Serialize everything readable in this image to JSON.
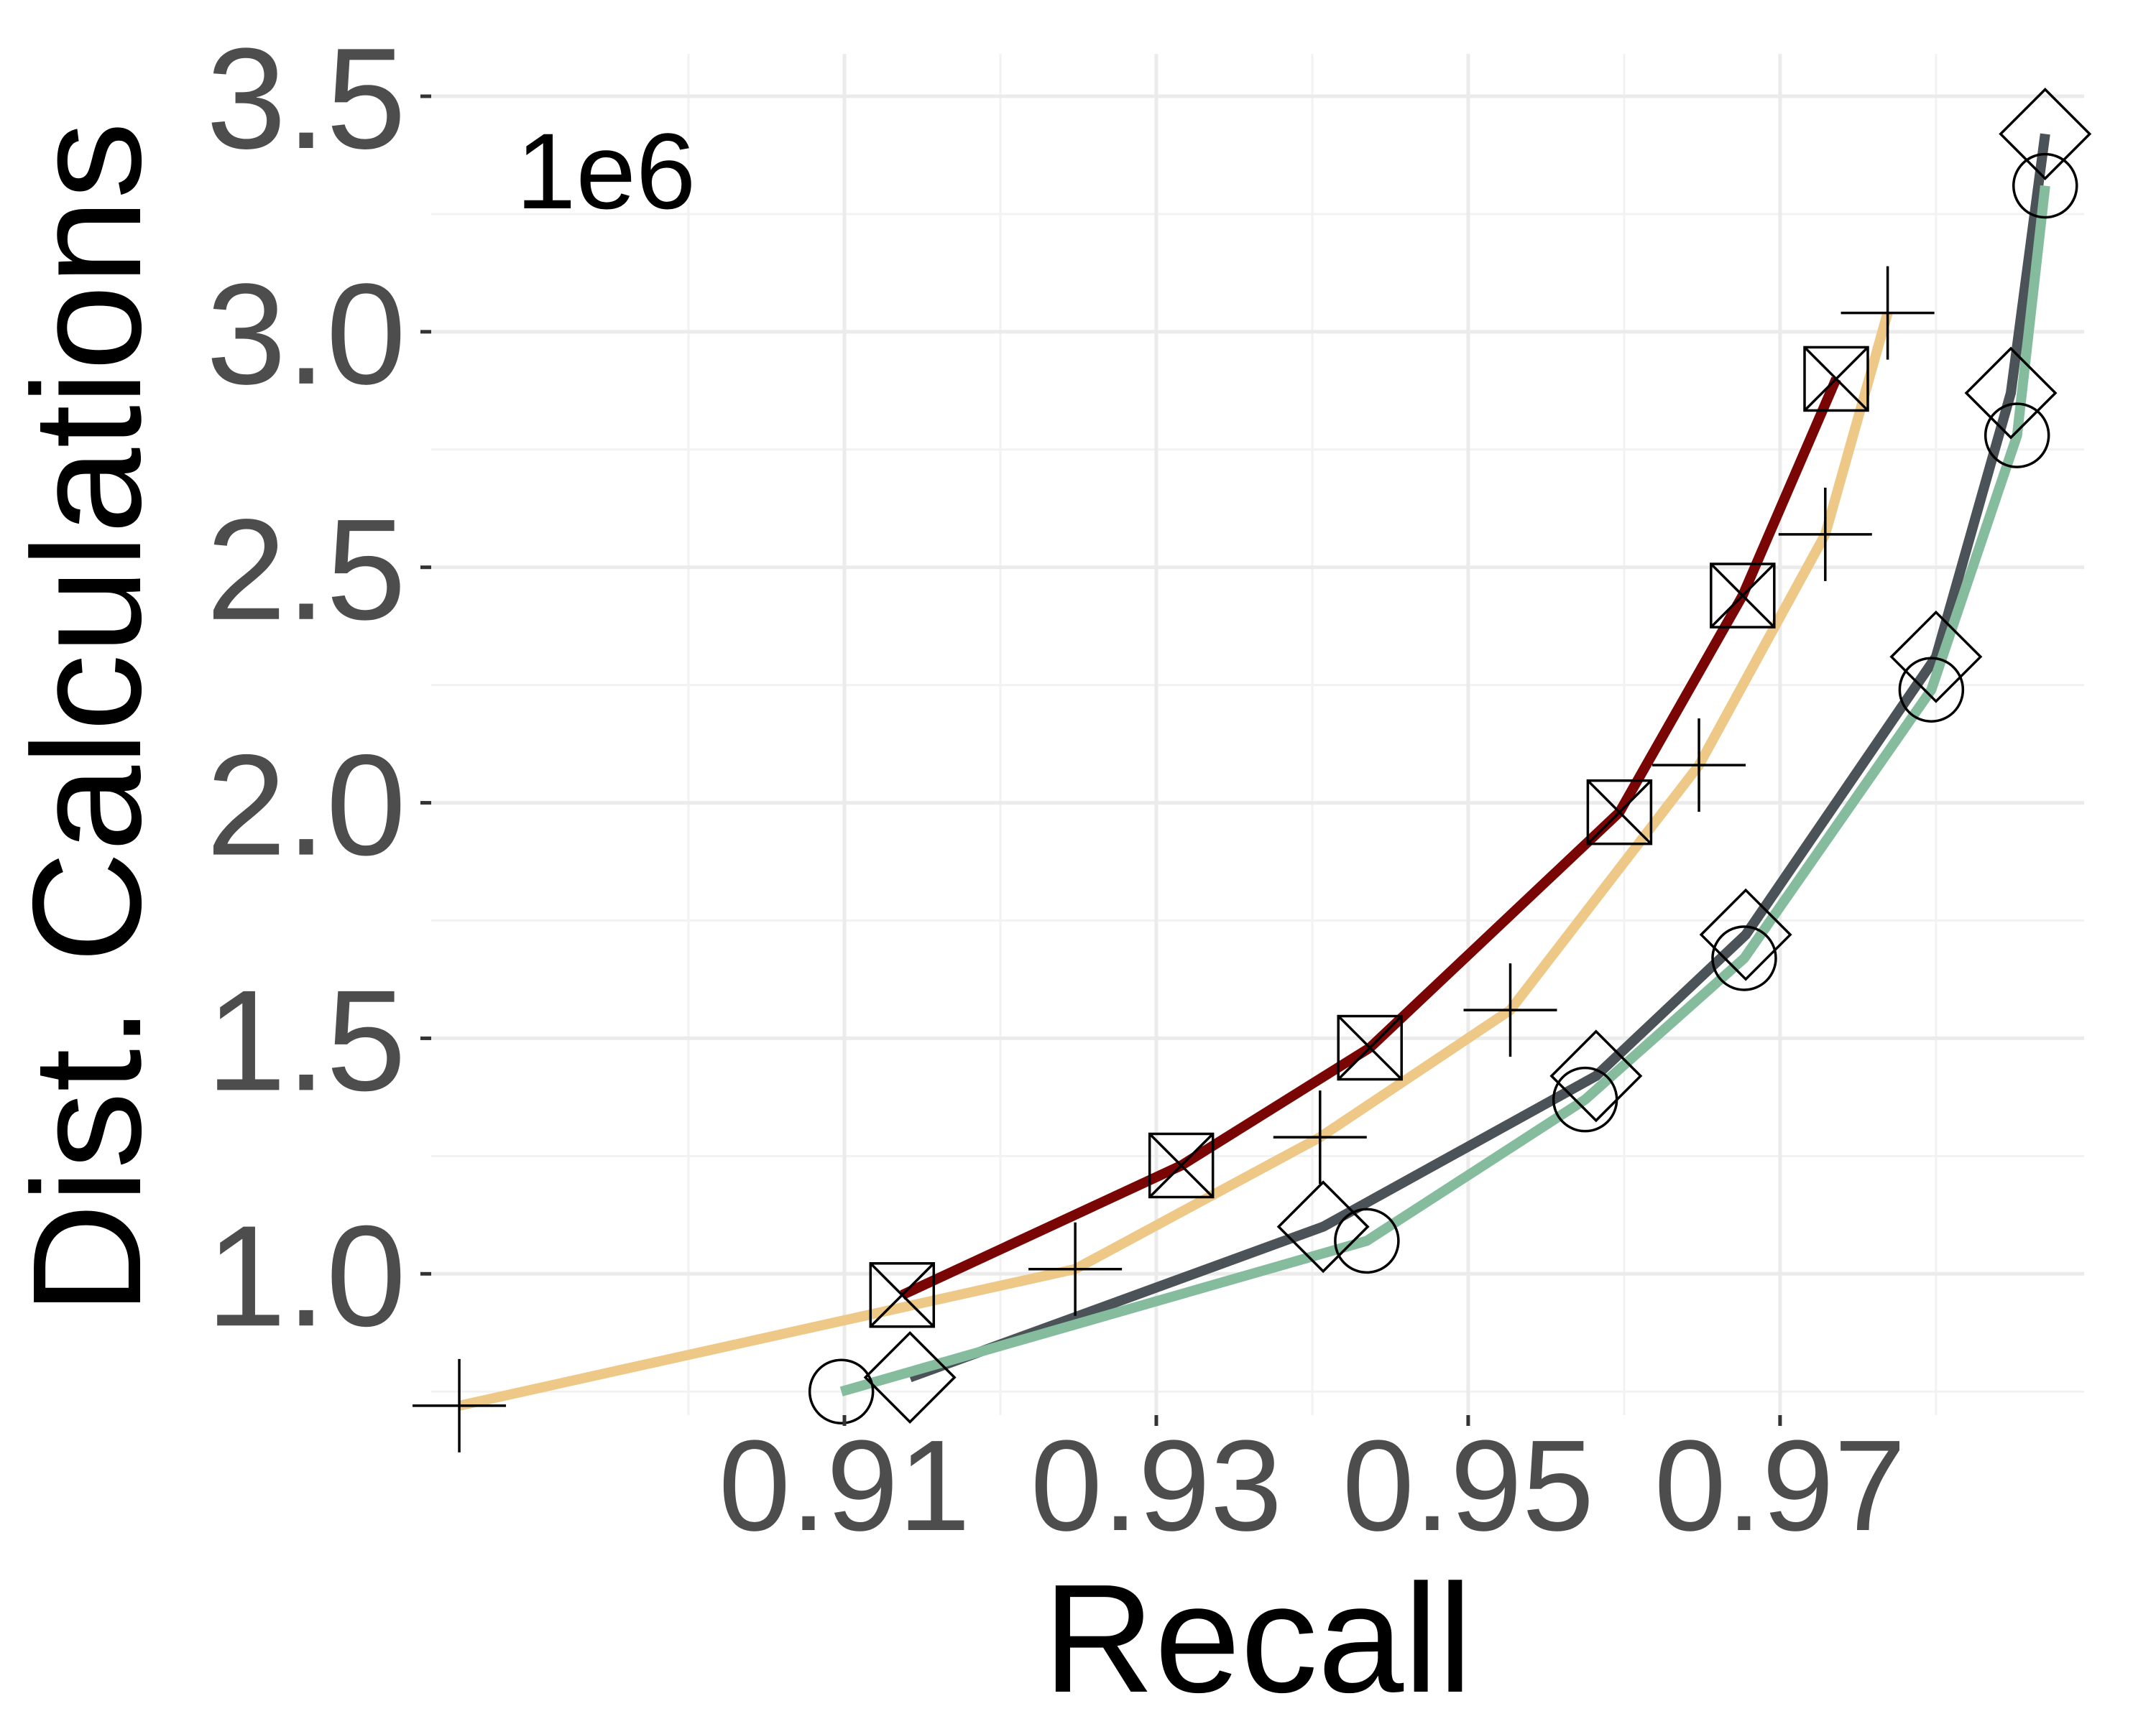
{
  "chart_data": {
    "type": "line",
    "title": "",
    "xlabel": "Recall",
    "ylabel": "Dist. Calculations",
    "y_scale_label": "1e6",
    "xlim": [
      0.8835,
      0.9895
    ],
    "ylim": [
      0.7,
      3.59
    ],
    "x_ticks": [
      {
        "value": 0.91,
        "label": "0.91"
      },
      {
        "value": 0.93,
        "label": "0.93"
      },
      {
        "value": 0.95,
        "label": "0.95"
      },
      {
        "value": 0.97,
        "label": "0.97"
      }
    ],
    "y_ticks": [
      {
        "value": 1.0,
        "label": "1.0"
      },
      {
        "value": 1.5,
        "label": "1.5"
      },
      {
        "value": 2.0,
        "label": "2.0"
      },
      {
        "value": 2.5,
        "label": "2.5"
      },
      {
        "value": 3.0,
        "label": "3.0"
      },
      {
        "value": 3.5,
        "label": "3.5"
      }
    ],
    "x_minor_ticks": [
      0.9,
      0.92,
      0.94,
      0.96,
      0.98
    ],
    "y_minor_ticks": [
      0.75,
      1.25,
      1.75,
      2.25,
      2.75,
      3.25
    ],
    "grid": true,
    "legend": "none",
    "series": [
      {
        "color": "#edc886",
        "marker": "plus",
        "x": [
          0.8853,
          0.9248,
          0.9405,
          0.9527,
          0.9648,
          0.9729,
          0.9769
        ],
        "y": [
          0.72,
          1.01,
          1.29,
          1.56,
          2.08,
          2.57,
          3.04
        ]
      },
      {
        "color": "#7a0505",
        "marker": "square-x",
        "x": [
          0.9137,
          0.9316,
          0.9437,
          0.9597,
          0.9676,
          0.9736
        ],
        "y": [
          0.955,
          1.23,
          1.48,
          1.98,
          2.44,
          2.9
        ]
      },
      {
        "color": "#4b5358",
        "marker": "diamond",
        "x": [
          0.9142,
          0.9407,
          0.9582,
          0.9678,
          0.98,
          0.9848,
          0.987
        ],
        "y": [
          0.78,
          1.1,
          1.42,
          1.72,
          2.31,
          2.87,
          3.42
        ]
      },
      {
        "color": "#85bc9d",
        "marker": "circle",
        "x": [
          0.9098,
          0.9435,
          0.9575,
          0.9677,
          0.9797,
          0.9852,
          0.987
        ],
        "y": [
          0.75,
          1.07,
          1.37,
          1.67,
          2.24,
          2.78,
          3.31
        ]
      }
    ]
  }
}
